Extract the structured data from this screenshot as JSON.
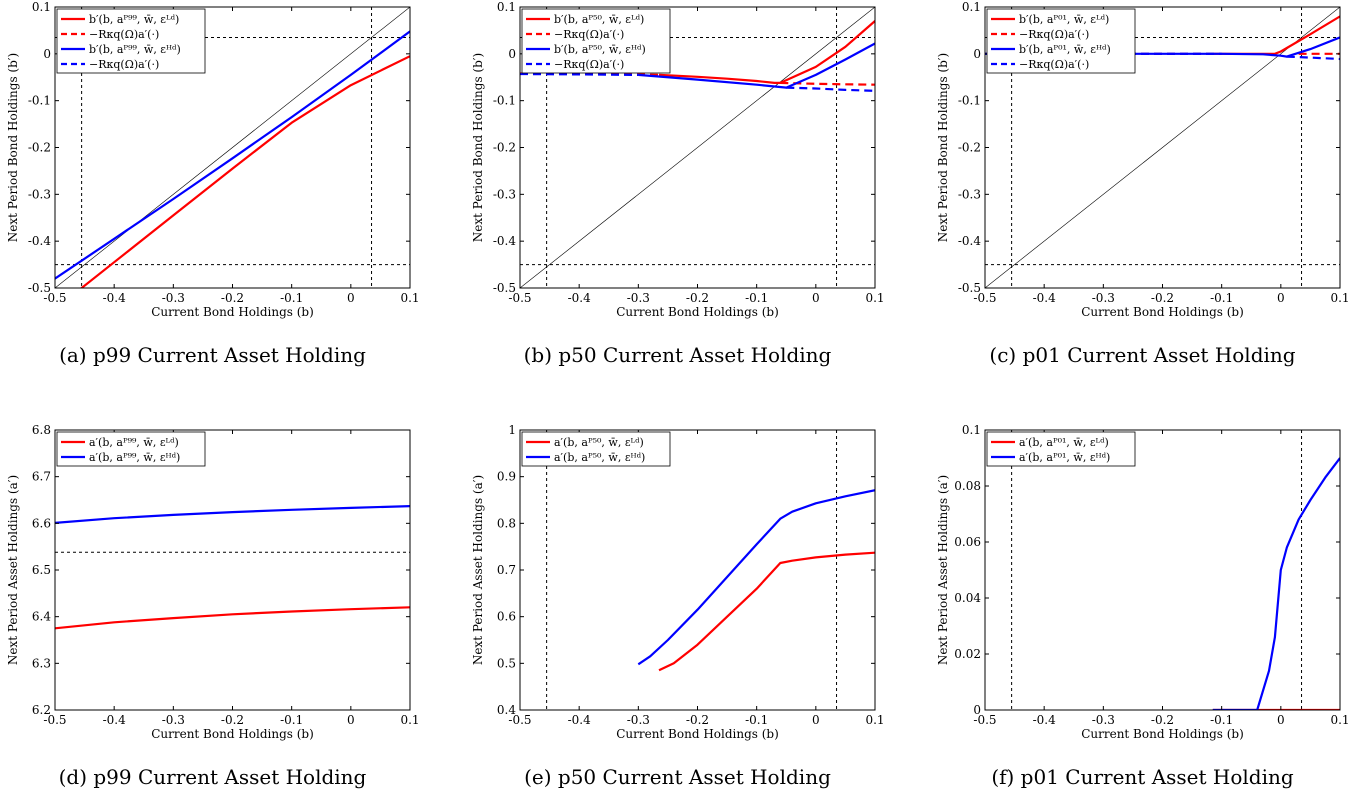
{
  "figure": {
    "panels": [
      {
        "caption": "(a) p99 Current Asset Holding",
        "chart": "b",
        "xlabel": "Current Bond Holdings (b)",
        "ylabel": "Next Period Bond Holdings (b′)",
        "legend": [
          {
            "label": "b′(b, aᴾ⁹⁹, w̄, εᴸᵈ)",
            "color": "#ff0000",
            "dash": false
          },
          {
            "label": "−Rκq(Ω)a′(·)",
            "color": "#ff0000",
            "dash": true
          },
          {
            "label": "b′(b, aᴾ⁹⁹, w̄, εᴴᵈ)",
            "color": "#0000ff",
            "dash": false
          },
          {
            "label": "−Rκq(Ω)a′(·)",
            "color": "#0000ff",
            "dash": true
          }
        ]
      },
      {
        "caption": "(b) p50 Current Asset Holding",
        "chart": "b",
        "xlabel": "Current Bond Holdings (b)",
        "ylabel": "Next Period Bond Holdings (b′)",
        "legend": [
          {
            "label": "b′(b, aᴾ⁵⁰, w̄, εᴸᵈ)",
            "color": "#ff0000",
            "dash": false
          },
          {
            "label": "−Rκq(Ω)a′(·)",
            "color": "#ff0000",
            "dash": true
          },
          {
            "label": "b′(b, aᴾ⁵⁰, w̄, εᴴᵈ)",
            "color": "#0000ff",
            "dash": false
          },
          {
            "label": "−Rκq(Ω)a′(·)",
            "color": "#0000ff",
            "dash": true
          }
        ]
      },
      {
        "caption": "(c) p01 Current Asset Holding",
        "chart": "b",
        "xlabel": "Current Bond Holdings (b)",
        "ylabel": "Next Period Bond Holdings (b′)",
        "legend": [
          {
            "label": "b′(b, aᴾ⁰¹, w̄, εᴸᵈ)",
            "color": "#ff0000",
            "dash": false
          },
          {
            "label": "−Rκq(Ω)a′(·)",
            "color": "#ff0000",
            "dash": true
          },
          {
            "label": "b′(b, aᴾ⁰¹, w̄, εᴴᵈ)",
            "color": "#0000ff",
            "dash": false
          },
          {
            "label": "−Rκq(Ω)a′(·)",
            "color": "#0000ff",
            "dash": true
          }
        ]
      },
      {
        "caption": "(d) p99 Current Asset Holding",
        "chart": "a",
        "xlabel": "Current Bond Holdings (b)",
        "ylabel": "Next Period Asset Holdings (a′)",
        "legend": [
          {
            "label": "a′(b, aᴾ⁹⁹, w̄, εᴸᵈ)",
            "color": "#ff0000",
            "dash": false
          },
          {
            "label": "a′(b, aᴾ⁹⁹, w̄, εᴴᵈ)",
            "color": "#0000ff",
            "dash": false
          }
        ]
      },
      {
        "caption": "(e) p50 Current Asset Holding",
        "chart": "a",
        "xlabel": "Current Bond Holdings (b)",
        "ylabel": "Next Period Asset Holdings (a′)",
        "legend": [
          {
            "label": "a′(b, aᴾ⁵⁰, w̄, εᴸᵈ)",
            "color": "#ff0000",
            "dash": false
          },
          {
            "label": "a′(b, aᴾ⁵⁰, w̄, εᴴᵈ)",
            "color": "#0000ff",
            "dash": false
          }
        ]
      },
      {
        "caption": "(f) p01 Current Asset Holding",
        "chart": "a",
        "xlabel": "Current Bond Holdings (b)",
        "ylabel": "Next Period Asset Holdings (a′)",
        "legend": [
          {
            "label": "a′(b, aᴾ⁰¹, w̄, εᴸᵈ)",
            "color": "#ff0000",
            "dash": false
          },
          {
            "label": "a′(b, aᴾ⁰¹, w̄, εᴴᵈ)",
            "color": "#0000ff",
            "dash": false
          }
        ]
      }
    ]
  },
  "chart_data": [
    {
      "type": "line",
      "panel": "a",
      "xlim": [
        -0.5,
        0.1
      ],
      "ylim": [
        -0.5,
        0.1
      ],
      "xticks": [
        "-0.5",
        "-0.4",
        "-0.3",
        "-0.2",
        "-0.1",
        "0",
        "0.1"
      ],
      "yticks": [
        "-0.5",
        "-0.4",
        "-0.3",
        "-0.2",
        "-0.1",
        "0",
        "0.1"
      ],
      "grid": false,
      "legend_position": "top-left",
      "diagonal": true,
      "ref_vlines": [
        -0.455,
        0.035
      ],
      "ref_hlines": [
        -0.45,
        0.035
      ],
      "series": [
        {
          "color": "#ff0000",
          "dashed": false,
          "x": [
            -0.5,
            -0.4,
            -0.3,
            -0.2,
            -0.1,
            0.0,
            0.1
          ],
          "y": [
            -0.545,
            -0.445,
            -0.345,
            -0.245,
            -0.147,
            -0.067,
            -0.005
          ]
        },
        {
          "color": "#0000ff",
          "dashed": false,
          "x": [
            -0.5,
            -0.4,
            -0.3,
            -0.2,
            -0.1,
            0.0,
            0.1
          ],
          "y": [
            -0.48,
            -0.395,
            -0.31,
            -0.223,
            -0.135,
            -0.045,
            0.048
          ]
        }
      ]
    },
    {
      "type": "line",
      "panel": "b",
      "xlim": [
        -0.5,
        0.1
      ],
      "ylim": [
        -0.5,
        0.1
      ],
      "xticks": [
        "-0.5",
        "-0.4",
        "-0.3",
        "-0.2",
        "-0.1",
        "0",
        "0.1"
      ],
      "yticks": [
        "-0.5",
        "-0.4",
        "-0.3",
        "-0.2",
        "-0.1",
        "0",
        "0.1"
      ],
      "grid": false,
      "legend_position": "top-left",
      "diagonal": true,
      "ref_vlines": [
        -0.455,
        0.035
      ],
      "ref_hlines": [
        -0.45,
        0.035
      ],
      "series": [
        {
          "color": "#ff0000",
          "dashed": false,
          "x": [
            -0.265,
            -0.2,
            -0.15,
            -0.1,
            -0.07,
            -0.06,
            0.0,
            0.05,
            0.1
          ],
          "y": [
            -0.045,
            -0.049,
            -0.053,
            -0.058,
            -0.062,
            -0.062,
            -0.028,
            0.015,
            0.07
          ]
        },
        {
          "color": "#ff0000",
          "dashed": true,
          "x": [
            -0.5,
            -0.4,
            -0.3,
            -0.265
          ],
          "y": [
            -0.042,
            -0.043,
            -0.044,
            -0.045
          ]
        },
        {
          "color": "#ff0000",
          "dashed": true,
          "x": [
            -0.06,
            0.0,
            0.05,
            0.1
          ],
          "y": [
            -0.062,
            -0.064,
            -0.065,
            -0.066
          ]
        },
        {
          "color": "#0000ff",
          "dashed": false,
          "x": [
            -0.3,
            -0.2,
            -0.1,
            -0.05,
            0.0,
            0.05,
            0.1
          ],
          "y": [
            -0.045,
            -0.055,
            -0.066,
            -0.072,
            -0.045,
            -0.012,
            0.022
          ]
        },
        {
          "color": "#0000ff",
          "dashed": true,
          "x": [
            -0.5,
            -0.4,
            -0.3
          ],
          "y": [
            -0.043,
            -0.044,
            -0.045
          ]
        },
        {
          "color": "#0000ff",
          "dashed": true,
          "x": [
            -0.05,
            0.0,
            0.05,
            0.1
          ],
          "y": [
            -0.072,
            -0.074,
            -0.077,
            -0.079
          ]
        }
      ]
    },
    {
      "type": "line",
      "panel": "c",
      "xlim": [
        -0.5,
        0.1
      ],
      "ylim": [
        -0.5,
        0.1
      ],
      "xticks": [
        "-0.5",
        "-0.4",
        "-0.3",
        "-0.2",
        "-0.1",
        "0",
        "0.1"
      ],
      "yticks": [
        "-0.5",
        "-0.4",
        "-0.3",
        "-0.2",
        "-0.1",
        "0",
        "0.1"
      ],
      "grid": false,
      "legend_position": "top-left",
      "diagonal": true,
      "ref_vlines": [
        -0.455,
        0.035
      ],
      "ref_hlines": [
        -0.45,
        0.035
      ],
      "series": [
        {
          "color": "#ff0000",
          "dashed": false,
          "x": [
            -0.12,
            -0.05,
            -0.01,
            0.0,
            0.05,
            0.1
          ],
          "y": [
            0.0,
            0.0,
            0.0,
            0.005,
            0.042,
            0.08
          ]
        },
        {
          "color": "#ff0000",
          "dashed": true,
          "x": [
            -0.5,
            -0.3,
            -0.12
          ],
          "y": [
            0.0,
            0.0,
            0.0
          ]
        },
        {
          "color": "#ff0000",
          "dashed": true,
          "x": [
            0.03,
            0.1
          ],
          "y": [
            0.0,
            0.0
          ]
        },
        {
          "color": "#0000ff",
          "dashed": false,
          "x": [
            -0.5,
            -0.3,
            -0.1,
            -0.03,
            0.0,
            0.01,
            0.05,
            0.1
          ],
          "y": [
            0.0,
            0.0,
            0.0,
            -0.001,
            -0.004,
            -0.006,
            0.01,
            0.035
          ]
        },
        {
          "color": "#0000ff",
          "dashed": true,
          "x": [
            -0.5,
            -0.3,
            -0.1
          ],
          "y": [
            0.0,
            0.0,
            0.0
          ]
        },
        {
          "color": "#0000ff",
          "dashed": true,
          "x": [
            0.01,
            0.05,
            0.1
          ],
          "y": [
            -0.006,
            -0.008,
            -0.011
          ]
        }
      ]
    },
    {
      "type": "line",
      "panel": "d",
      "xlim": [
        -0.5,
        0.1
      ],
      "ylim": [
        6.2,
        6.8
      ],
      "xticks": [
        "-0.5",
        "-0.4",
        "-0.3",
        "-0.2",
        "-0.1",
        "0",
        "0.1"
      ],
      "yticks": [
        "6.2",
        "6.3",
        "6.4",
        "6.5",
        "6.6",
        "6.7",
        "6.8"
      ],
      "grid": false,
      "legend_position": "top-left",
      "diagonal": false,
      "ref_vlines": [],
      "ref_hlines": [
        6.538
      ],
      "series": [
        {
          "color": "#ff0000",
          "dashed": false,
          "x": [
            -0.5,
            -0.4,
            -0.3,
            -0.2,
            -0.1,
            0.0,
            0.1
          ],
          "y": [
            6.375,
            6.388,
            6.397,
            6.405,
            6.411,
            6.416,
            6.42
          ]
        },
        {
          "color": "#0000ff",
          "dashed": false,
          "x": [
            -0.5,
            -0.4,
            -0.3,
            -0.2,
            -0.1,
            0.0,
            0.1
          ],
          "y": [
            6.601,
            6.611,
            6.618,
            6.624,
            6.629,
            6.633,
            6.637
          ]
        }
      ]
    },
    {
      "type": "line",
      "panel": "e",
      "xlim": [
        -0.5,
        0.1
      ],
      "ylim": [
        0.4,
        1.0
      ],
      "xticks": [
        "-0.5",
        "-0.4",
        "-0.3",
        "-0.2",
        "-0.1",
        "0",
        "0.1"
      ],
      "yticks": [
        "0.4",
        "0.5",
        "0.6",
        "0.7",
        "0.8",
        "0.9",
        "1"
      ],
      "grid": false,
      "legend_position": "top-left",
      "diagonal": false,
      "ref_vlines": [
        -0.455,
        0.035
      ],
      "ref_hlines": [],
      "series": [
        {
          "color": "#ff0000",
          "dashed": false,
          "x": [
            -0.265,
            -0.24,
            -0.2,
            -0.15,
            -0.1,
            -0.06,
            -0.04,
            0.0,
            0.05,
            0.1
          ],
          "y": [
            0.485,
            0.5,
            0.54,
            0.6,
            0.66,
            0.715,
            0.72,
            0.727,
            0.733,
            0.737
          ]
        },
        {
          "color": "#0000ff",
          "dashed": false,
          "x": [
            -0.3,
            -0.28,
            -0.25,
            -0.2,
            -0.15,
            -0.1,
            -0.06,
            -0.04,
            0.0,
            0.05,
            0.1
          ],
          "y": [
            0.498,
            0.515,
            0.55,
            0.615,
            0.685,
            0.755,
            0.81,
            0.825,
            0.843,
            0.858,
            0.871
          ]
        }
      ]
    },
    {
      "type": "line",
      "panel": "f",
      "xlim": [
        -0.5,
        0.1
      ],
      "ylim": [
        0,
        0.1
      ],
      "xticks": [
        "-0.5",
        "-0.4",
        "-0.3",
        "-0.2",
        "-0.1",
        "0",
        "0.1"
      ],
      "yticks": [
        "0",
        "0.02",
        "0.04",
        "0.06",
        "0.08",
        "0.1"
      ],
      "grid": false,
      "legend_position": "top-left",
      "diagonal": false,
      "ref_vlines": [
        -0.455,
        0.035
      ],
      "ref_hlines": [
        0.0
      ],
      "series": [
        {
          "color": "#ff0000",
          "dashed": false,
          "x": [
            -0.115,
            -0.05,
            0.0,
            0.05,
            0.1
          ],
          "y": [
            0.0,
            0.0,
            0.0,
            0.0,
            0.0
          ]
        },
        {
          "color": "#0000ff",
          "dashed": false,
          "x": [
            -0.115,
            -0.04,
            -0.02,
            -0.01,
            0.0,
            0.01,
            0.03,
            0.05,
            0.075,
            0.1
          ],
          "y": [
            0.0,
            0.0,
            0.014,
            0.026,
            0.05,
            0.058,
            0.068,
            0.075,
            0.083,
            0.09
          ]
        }
      ]
    }
  ]
}
